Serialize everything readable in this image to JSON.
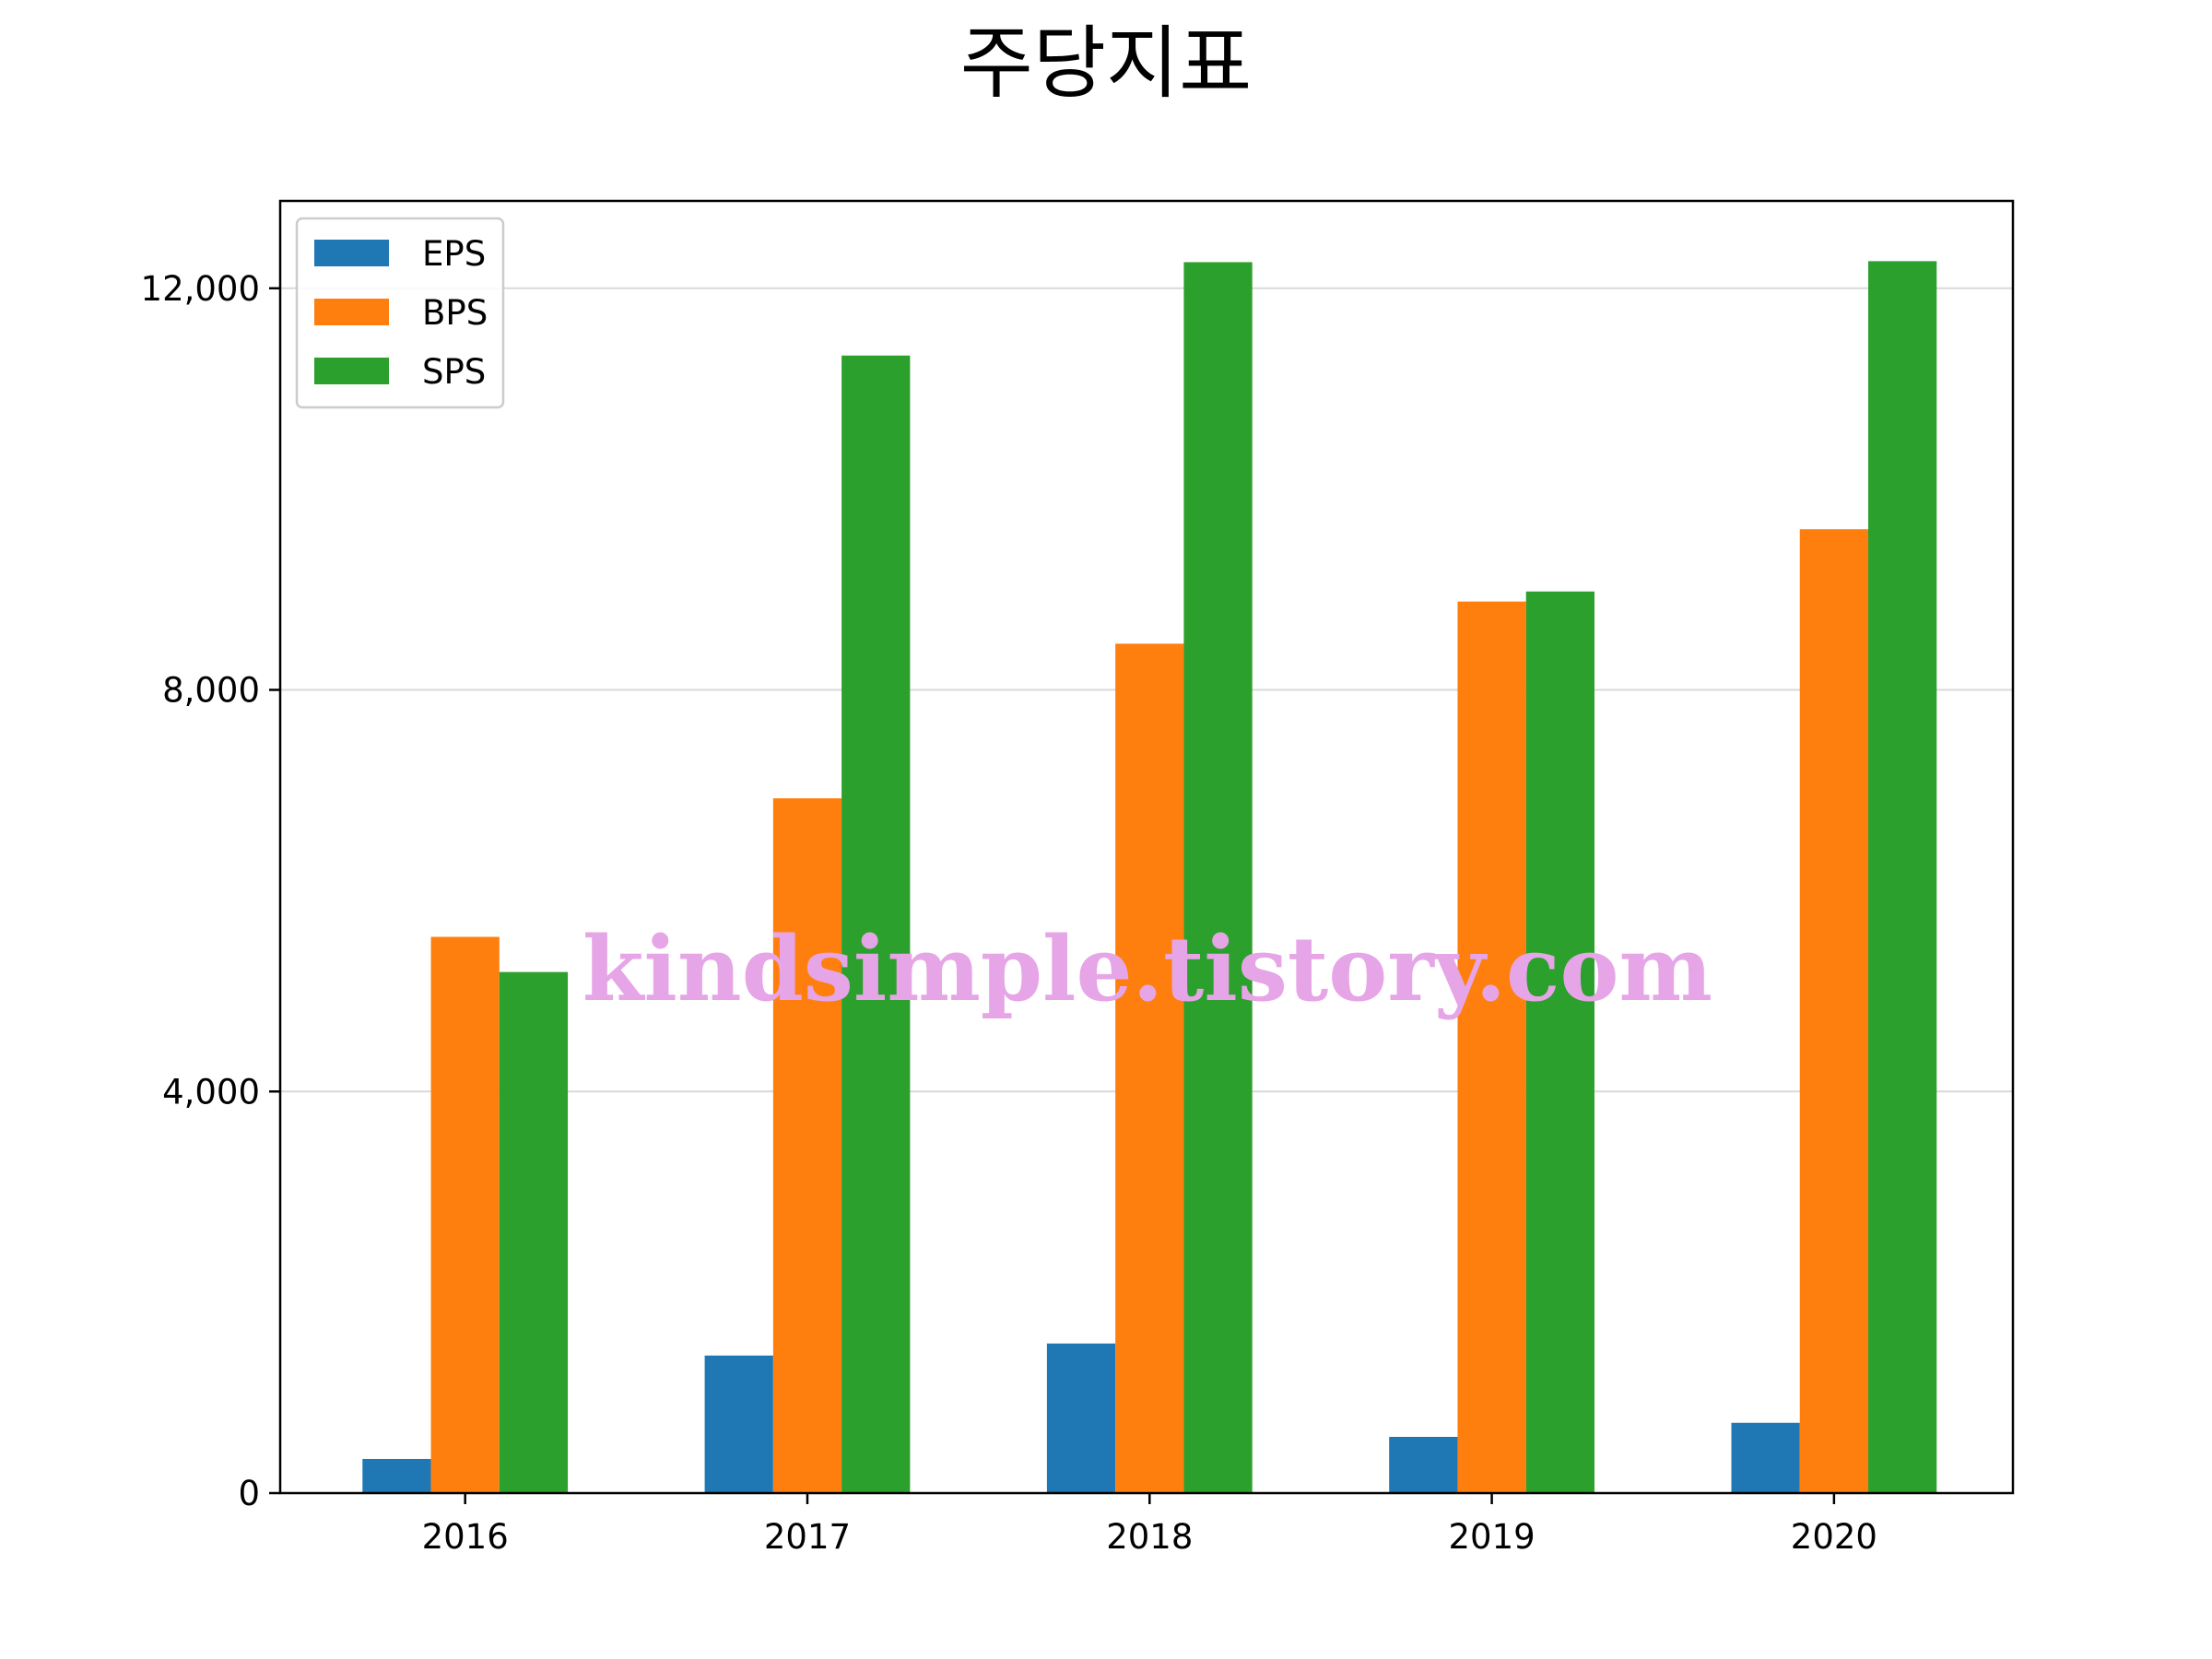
{
  "chart_data": {
    "type": "bar",
    "title": "주당지표",
    "xlabel": "",
    "ylabel": "",
    "categories": [
      "2016",
      "2017",
      "2018",
      "2019",
      "2020"
    ],
    "series": [
      {
        "name": "EPS",
        "color": "#1f77b4",
        "values": [
          340,
          1370,
          1490,
          560,
          700
        ]
      },
      {
        "name": "BPS",
        "color": "#ff7f0e",
        "values": [
          5540,
          6920,
          8460,
          8880,
          9600
        ]
      },
      {
        "name": "SPS",
        "color": "#2ca02c",
        "values": [
          5190,
          11330,
          12260,
          8980,
          12270
        ]
      }
    ],
    "ylim": [
      0,
      12870
    ],
    "yticks": [
      0,
      4000,
      8000,
      12000
    ],
    "ytick_labels": [
      "0",
      "4,000",
      "8,000",
      "12,000"
    ],
    "grid": "y",
    "legend": "upper-left",
    "watermark": "kindsimple.tistory.com",
    "watermark_color": "#e6a5e6",
    "grid_color": "#d9d9d9"
  }
}
